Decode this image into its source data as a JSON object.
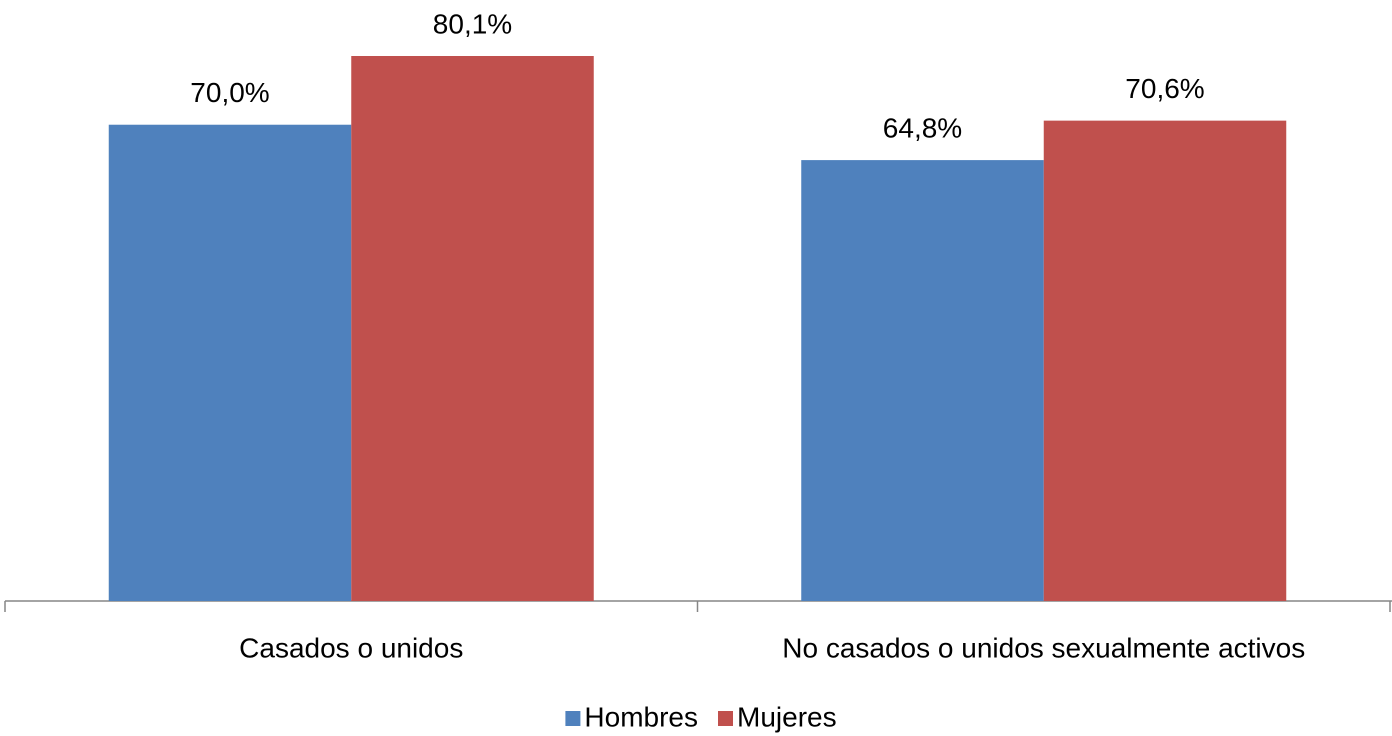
{
  "chart_data": {
    "type": "bar",
    "categories": [
      "Casados o unidos",
      "No casados o unidos sexualmente activos"
    ],
    "series": [
      {
        "name": "Hombres",
        "color": "#4f81bd",
        "values": [
          70.0,
          64.8
        ],
        "value_labels": [
          "70,0%",
          "64,8%"
        ]
      },
      {
        "name": "Mujeres",
        "color": "#c0504d",
        "values": [
          80.1,
          70.6
        ],
        "value_labels": [
          "80,1%",
          "70,6%"
        ]
      }
    ],
    "legend": "bottom"
  }
}
